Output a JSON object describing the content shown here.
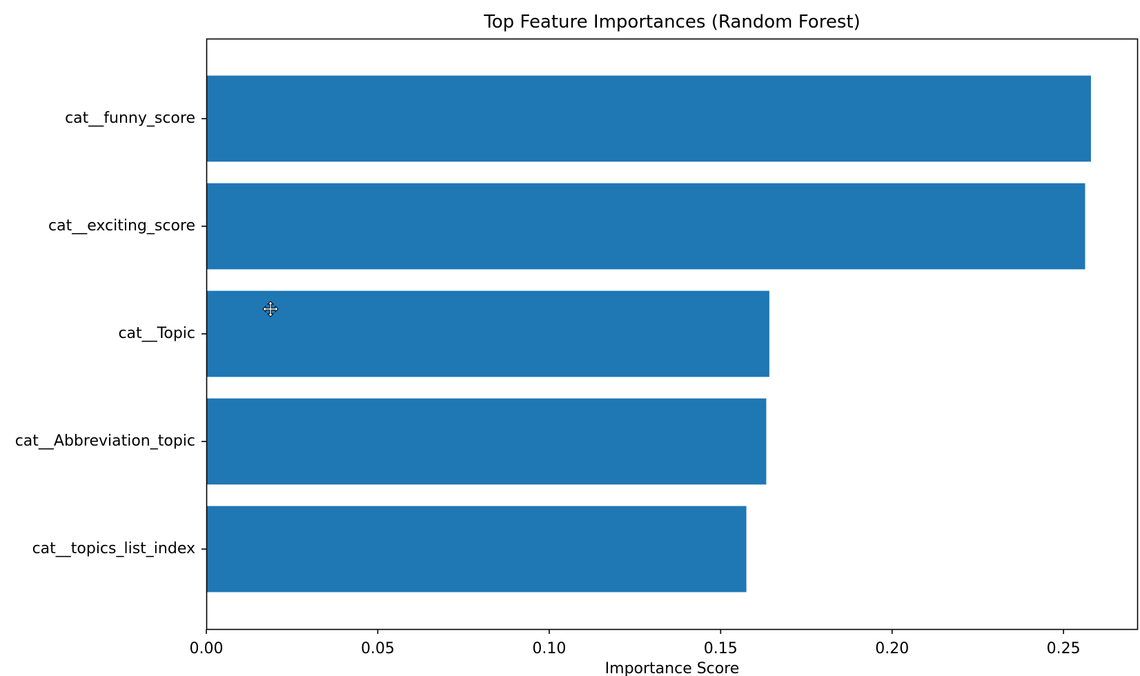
{
  "chart_data": {
    "type": "bar",
    "orientation": "horizontal",
    "title": "Top Feature Importances (Random Forest)",
    "xlabel": "Importance Score",
    "ylabel": "",
    "categories": [
      "cat__funny_score",
      "cat__exciting_score",
      "cat__Topic",
      "cat__Abbreviation_topic",
      "cat__topics_list_index"
    ],
    "values": [
      0.258,
      0.2563,
      0.1642,
      0.1633,
      0.1575
    ],
    "xlim": [
      0,
      0.2715
    ],
    "xticks": [
      "0.00",
      "0.05",
      "0.10",
      "0.15",
      "0.20",
      "0.25"
    ],
    "xtick_values": [
      0,
      0.05,
      0.1,
      0.15,
      0.2,
      0.25
    ],
    "grid": false,
    "legend": "none",
    "colors": {
      "bar": "#1f77b4",
      "axis": "#000000",
      "background": "#ffffff"
    }
  },
  "cursor": {
    "icon": "move-cursor-icon"
  }
}
